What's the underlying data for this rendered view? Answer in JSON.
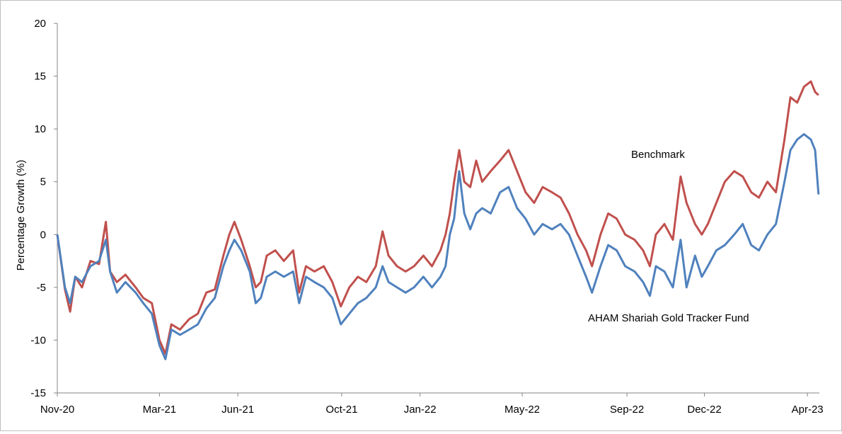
{
  "chart_data": {
    "type": "line",
    "title": "",
    "xlabel": "",
    "ylabel": "Percentage Growth (%)",
    "ylim": [
      -15,
      20
    ],
    "yticks": [
      -15,
      -10,
      -5,
      0,
      5,
      10,
      15,
      20
    ],
    "xlim": [
      "2020-11-01",
      "2023-04-15"
    ],
    "xticks": [
      {
        "date": "2020-11-01",
        "label": "Nov-20"
      },
      {
        "date": "2021-03-01",
        "label": "Mar-21"
      },
      {
        "date": "2021-06-01",
        "label": "Jun-21"
      },
      {
        "date": "2021-10-01",
        "label": "Oct-21"
      },
      {
        "date": "2022-01-01",
        "label": "Jan-22"
      },
      {
        "date": "2022-05-01",
        "label": "May-22"
      },
      {
        "date": "2022-09-01",
        "label": "Sep-22"
      },
      {
        "date": "2022-12-01",
        "label": "Dec-22"
      },
      {
        "date": "2023-04-01",
        "label": "Apr-23"
      }
    ],
    "grid": false,
    "legend": "none",
    "annotations": [
      {
        "text": "Benchmark",
        "series": "Benchmark"
      },
      {
        "text": "AHAM Shariah Gold Tracker Fund",
        "series": "AHAM Shariah Gold Tracker Fund"
      }
    ],
    "series": [
      {
        "name": "Benchmark",
        "color": "#c0504d",
        "points": [
          [
            "2020-11-01",
            0
          ],
          [
            "2020-11-10",
            -5.2
          ],
          [
            "2020-11-16",
            -7.3
          ],
          [
            "2020-11-22",
            -4
          ],
          [
            "2020-11-30",
            -5
          ],
          [
            "2020-12-10",
            -2.5
          ],
          [
            "2020-12-20",
            -2.8
          ],
          [
            "2020-12-28",
            1.2
          ],
          [
            "2021-01-02",
            -3.5
          ],
          [
            "2021-01-10",
            -4.5
          ],
          [
            "2021-01-20",
            -3.8
          ],
          [
            "2021-02-01",
            -5
          ],
          [
            "2021-02-10",
            -6
          ],
          [
            "2021-02-20",
            -6.5
          ],
          [
            "2021-03-01",
            -10
          ],
          [
            "2021-03-08",
            -11.3
          ],
          [
            "2021-03-15",
            -8.5
          ],
          [
            "2021-03-25",
            -9
          ],
          [
            "2021-04-05",
            -8
          ],
          [
            "2021-04-15",
            -7.5
          ],
          [
            "2021-04-25",
            -5.5
          ],
          [
            "2021-05-05",
            -5.2
          ],
          [
            "2021-05-15",
            -2
          ],
          [
            "2021-05-22",
            0
          ],
          [
            "2021-05-28",
            1.2
          ],
          [
            "2021-06-05",
            -0.5
          ],
          [
            "2021-06-15",
            -3
          ],
          [
            "2021-06-22",
            -5
          ],
          [
            "2021-06-28",
            -4.5
          ],
          [
            "2021-07-05",
            -2
          ],
          [
            "2021-07-15",
            -1.5
          ],
          [
            "2021-07-25",
            -2.5
          ],
          [
            "2021-08-05",
            -1.5
          ],
          [
            "2021-08-12",
            -5.5
          ],
          [
            "2021-08-20",
            -3
          ],
          [
            "2021-08-30",
            -3.5
          ],
          [
            "2021-09-10",
            -3
          ],
          [
            "2021-09-20",
            -4.5
          ],
          [
            "2021-09-30",
            -6.8
          ],
          [
            "2021-10-10",
            -5
          ],
          [
            "2021-10-20",
            -4
          ],
          [
            "2021-10-30",
            -4.5
          ],
          [
            "2021-11-10",
            -3
          ],
          [
            "2021-11-18",
            0.3
          ],
          [
            "2021-11-25",
            -2
          ],
          [
            "2021-12-05",
            -3
          ],
          [
            "2021-12-15",
            -3.5
          ],
          [
            "2021-12-25",
            -3
          ],
          [
            "2022-01-05",
            -2
          ],
          [
            "2022-01-15",
            -3
          ],
          [
            "2022-01-25",
            -1.5
          ],
          [
            "2022-01-31",
            0
          ],
          [
            "2022-02-05",
            2
          ],
          [
            "2022-02-10",
            5
          ],
          [
            "2022-02-16",
            8
          ],
          [
            "2022-02-22",
            5
          ],
          [
            "2022-03-01",
            4.5
          ],
          [
            "2022-03-08",
            7
          ],
          [
            "2022-03-15",
            5
          ],
          [
            "2022-03-25",
            6
          ],
          [
            "2022-04-05",
            7
          ],
          [
            "2022-04-15",
            8
          ],
          [
            "2022-04-25",
            6
          ],
          [
            "2022-05-05",
            4
          ],
          [
            "2022-05-15",
            3
          ],
          [
            "2022-05-25",
            4.5
          ],
          [
            "2022-06-05",
            4
          ],
          [
            "2022-06-15",
            3.5
          ],
          [
            "2022-06-25",
            2
          ],
          [
            "2022-07-05",
            0
          ],
          [
            "2022-07-15",
            -1.5
          ],
          [
            "2022-07-22",
            -3
          ],
          [
            "2022-08-01",
            0
          ],
          [
            "2022-08-10",
            2
          ],
          [
            "2022-08-20",
            1.5
          ],
          [
            "2022-08-30",
            0
          ],
          [
            "2022-09-10",
            -0.5
          ],
          [
            "2022-09-20",
            -1.5
          ],
          [
            "2022-09-28",
            -3
          ],
          [
            "2022-10-05",
            0
          ],
          [
            "2022-10-15",
            1
          ],
          [
            "2022-10-25",
            -0.5
          ],
          [
            "2022-11-03",
            5.5
          ],
          [
            "2022-11-10",
            3
          ],
          [
            "2022-11-20",
            1
          ],
          [
            "2022-11-28",
            0
          ],
          [
            "2022-12-05",
            1
          ],
          [
            "2022-12-15",
            3
          ],
          [
            "2022-12-25",
            5
          ],
          [
            "2023-01-05",
            6
          ],
          [
            "2023-01-15",
            5.5
          ],
          [
            "2023-01-25",
            4
          ],
          [
            "2023-02-03",
            3.5
          ],
          [
            "2023-02-13",
            5
          ],
          [
            "2023-02-23",
            4
          ],
          [
            "2023-03-05",
            9
          ],
          [
            "2023-03-12",
            13
          ],
          [
            "2023-03-20",
            12.5
          ],
          [
            "2023-03-28",
            14
          ],
          [
            "2023-04-05",
            14.5
          ],
          [
            "2023-04-10",
            13.5
          ],
          [
            "2023-04-14",
            13.2
          ]
        ]
      },
      {
        "name": "AHAM Shariah Gold Tracker Fund",
        "color": "#4f81bd",
        "points": [
          [
            "2020-11-01",
            0
          ],
          [
            "2020-11-10",
            -5
          ],
          [
            "2020-11-16",
            -6.5
          ],
          [
            "2020-11-22",
            -4
          ],
          [
            "2020-11-30",
            -4.5
          ],
          [
            "2020-12-10",
            -3
          ],
          [
            "2020-12-20",
            -2.5
          ],
          [
            "2020-12-28",
            -0.5
          ],
          [
            "2021-01-02",
            -3.5
          ],
          [
            "2021-01-10",
            -5.5
          ],
          [
            "2021-01-20",
            -4.5
          ],
          [
            "2021-02-01",
            -5.5
          ],
          [
            "2021-02-10",
            -6.5
          ],
          [
            "2021-02-20",
            -7.5
          ],
          [
            "2021-03-01",
            -10.5
          ],
          [
            "2021-03-08",
            -11.8
          ],
          [
            "2021-03-15",
            -9
          ],
          [
            "2021-03-25",
            -9.5
          ],
          [
            "2021-04-05",
            -9
          ],
          [
            "2021-04-15",
            -8.5
          ],
          [
            "2021-04-25",
            -7
          ],
          [
            "2021-05-05",
            -6
          ],
          [
            "2021-05-15",
            -3
          ],
          [
            "2021-05-22",
            -1.5
          ],
          [
            "2021-05-28",
            -0.5
          ],
          [
            "2021-06-05",
            -1.5
          ],
          [
            "2021-06-15",
            -3.5
          ],
          [
            "2021-06-22",
            -6.5
          ],
          [
            "2021-06-28",
            -6
          ],
          [
            "2021-07-05",
            -4
          ],
          [
            "2021-07-15",
            -3.5
          ],
          [
            "2021-07-25",
            -4
          ],
          [
            "2021-08-05",
            -3.5
          ],
          [
            "2021-08-12",
            -6.5
          ],
          [
            "2021-08-20",
            -4
          ],
          [
            "2021-08-30",
            -4.5
          ],
          [
            "2021-09-10",
            -5
          ],
          [
            "2021-09-20",
            -6
          ],
          [
            "2021-09-30",
            -8.5
          ],
          [
            "2021-10-10",
            -7.5
          ],
          [
            "2021-10-20",
            -6.5
          ],
          [
            "2021-10-30",
            -6
          ],
          [
            "2021-11-10",
            -5
          ],
          [
            "2021-11-18",
            -3
          ],
          [
            "2021-11-25",
            -4.5
          ],
          [
            "2021-12-05",
            -5
          ],
          [
            "2021-12-15",
            -5.5
          ],
          [
            "2021-12-25",
            -5
          ],
          [
            "2022-01-05",
            -4
          ],
          [
            "2022-01-15",
            -5
          ],
          [
            "2022-01-25",
            -4
          ],
          [
            "2022-01-31",
            -3
          ],
          [
            "2022-02-05",
            0
          ],
          [
            "2022-02-10",
            1.5
          ],
          [
            "2022-02-16",
            6
          ],
          [
            "2022-02-22",
            2
          ],
          [
            "2022-03-01",
            0.5
          ],
          [
            "2022-03-08",
            2
          ],
          [
            "2022-03-15",
            2.5
          ],
          [
            "2022-03-25",
            2
          ],
          [
            "2022-04-05",
            4
          ],
          [
            "2022-04-15",
            4.5
          ],
          [
            "2022-04-25",
            2.5
          ],
          [
            "2022-05-05",
            1.5
          ],
          [
            "2022-05-15",
            0
          ],
          [
            "2022-05-25",
            1
          ],
          [
            "2022-06-05",
            0.5
          ],
          [
            "2022-06-15",
            1
          ],
          [
            "2022-06-25",
            0
          ],
          [
            "2022-07-05",
            -2
          ],
          [
            "2022-07-15",
            -4
          ],
          [
            "2022-07-22",
            -5.5
          ],
          [
            "2022-08-01",
            -3
          ],
          [
            "2022-08-10",
            -1
          ],
          [
            "2022-08-20",
            -1.5
          ],
          [
            "2022-08-30",
            -3
          ],
          [
            "2022-09-10",
            -3.5
          ],
          [
            "2022-09-20",
            -4.5
          ],
          [
            "2022-09-28",
            -5.8
          ],
          [
            "2022-10-05",
            -3
          ],
          [
            "2022-10-15",
            -3.5
          ],
          [
            "2022-10-25",
            -5
          ],
          [
            "2022-11-03",
            -0.5
          ],
          [
            "2022-11-10",
            -5
          ],
          [
            "2022-11-20",
            -2
          ],
          [
            "2022-11-28",
            -4
          ],
          [
            "2022-12-05",
            -3
          ],
          [
            "2022-12-15",
            -1.5
          ],
          [
            "2022-12-25",
            -1
          ],
          [
            "2023-01-05",
            0
          ],
          [
            "2023-01-15",
            1
          ],
          [
            "2023-01-25",
            -1
          ],
          [
            "2023-02-03",
            -1.5
          ],
          [
            "2023-02-13",
            0
          ],
          [
            "2023-02-23",
            1
          ],
          [
            "2023-03-05",
            5
          ],
          [
            "2023-03-12",
            8
          ],
          [
            "2023-03-20",
            9
          ],
          [
            "2023-03-28",
            9.5
          ],
          [
            "2023-04-05",
            9
          ],
          [
            "2023-04-10",
            8
          ],
          [
            "2023-04-14",
            3.8
          ]
        ]
      }
    ]
  }
}
